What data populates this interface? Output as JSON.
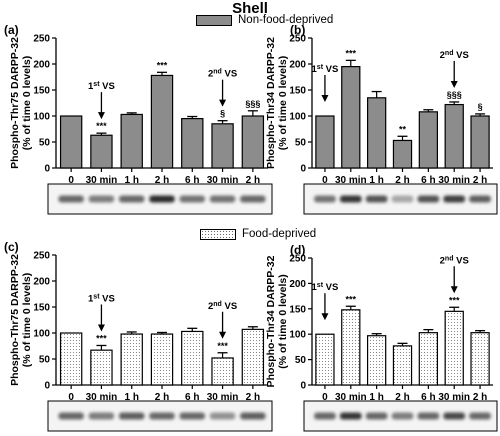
{
  "title": "Shell",
  "legend": {
    "non_food_deprived": "Non-food-deprived",
    "food_deprived": "Food-deprived"
  },
  "colors": {
    "non_food_deprived": "#8c8c8c",
    "food_deprived_dots": "#6a6a6a",
    "axis": "#000000"
  },
  "chart_data": [
    {
      "panel": "(a)",
      "type": "bar",
      "categories": [
        "0",
        "30 min",
        "1 h",
        "2 h",
        "6 h",
        "30 min",
        "2 h"
      ],
      "values": [
        100,
        63,
        103,
        178,
        95,
        85,
        100
      ],
      "errors": [
        0,
        4,
        3,
        6,
        4,
        6,
        10
      ],
      "sig": [
        "",
        "***",
        "",
        "***",
        "",
        "§",
        "§§§"
      ],
      "ylabel": [
        "Phospho-Thr75 DARPP-32",
        "(% of time 0 levels)"
      ],
      "ylim": [
        0,
        250
      ],
      "yticks": [
        0,
        50,
        100,
        150,
        200,
        250
      ],
      "fill": "gray",
      "annotations": [
        {
          "text": "1st VS",
          "at": 1
        },
        {
          "text": "2nd VS",
          "at": 5
        }
      ]
    },
    {
      "panel": "(b)",
      "type": "bar",
      "categories": [
        "0",
        "30 min",
        "1 h",
        "2 h",
        "6 h",
        "30 min",
        "2 h"
      ],
      "values": [
        100,
        195,
        135,
        53,
        108,
        122,
        100
      ],
      "errors": [
        0,
        12,
        12,
        8,
        4,
        5,
        4
      ],
      "sig": [
        "",
        "***",
        "",
        "**",
        "",
        "§§§",
        "§"
      ],
      "ylabel": [
        "Phospho-Thr34 DARPP-32",
        "(% of time 0 levels)"
      ],
      "ylim": [
        0,
        250
      ],
      "yticks": [
        0,
        50,
        100,
        150,
        200,
        250
      ],
      "fill": "gray",
      "annotations": [
        {
          "text": "1st VS",
          "at": 0
        },
        {
          "text": "2nd VS",
          "at": 5
        }
      ]
    },
    {
      "panel": "(c)",
      "type": "bar",
      "categories": [
        "0",
        "30 min",
        "1 h",
        "2 h",
        "6 h",
        "30 min",
        "2 h"
      ],
      "values": [
        100,
        67,
        98,
        98,
        103,
        52,
        107
      ],
      "errors": [
        0,
        9,
        4,
        3,
        6,
        10,
        5
      ],
      "sig": [
        "",
        "***",
        "",
        "",
        "",
        "***",
        ""
      ],
      "ylabel": [
        "Phospho-Thr75 DARPP-32",
        "(% of time 0 levels)"
      ],
      "ylim": [
        0,
        250
      ],
      "yticks": [
        0,
        50,
        100,
        150,
        200,
        250
      ],
      "fill": "dots",
      "annotations": [
        {
          "text": "1st VS",
          "at": 1
        },
        {
          "text": "2nd VS",
          "at": 5
        }
      ]
    },
    {
      "panel": "(d)",
      "type": "bar",
      "categories": [
        "0",
        "30 min",
        "1 h",
        "2 h",
        "6 h",
        "30 min",
        "2 h"
      ],
      "values": [
        100,
        148,
        97,
        77,
        103,
        145,
        103
      ],
      "errors": [
        0,
        7,
        4,
        5,
        6,
        8,
        4
      ],
      "sig": [
        "",
        "***",
        "",
        "",
        "",
        "***",
        ""
      ],
      "ylabel": [
        "Phospho-Thr34 DARPP-32",
        "(% of time 0 levels)"
      ],
      "ylim": [
        0,
        250
      ],
      "yticks": [
        0,
        50,
        100,
        150,
        200,
        250
      ],
      "fill": "dots",
      "annotations": [
        {
          "text": "1st VS",
          "at": 0
        },
        {
          "text": "2nd VS",
          "at": 5
        }
      ]
    }
  ],
  "blots": [
    {
      "panel": "(a)",
      "intensity": [
        0.6,
        0.5,
        0.6,
        0.9,
        0.55,
        0.55,
        0.6
      ]
    },
    {
      "panel": "(b)",
      "intensity": [
        0.55,
        0.85,
        0.7,
        0.3,
        0.7,
        0.8,
        0.65
      ]
    },
    {
      "panel": "(c)",
      "intensity": [
        0.6,
        0.5,
        0.65,
        0.6,
        0.6,
        0.4,
        0.65
      ]
    },
    {
      "panel": "(d)",
      "intensity": [
        0.6,
        0.85,
        0.6,
        0.5,
        0.6,
        0.75,
        0.6
      ]
    }
  ]
}
